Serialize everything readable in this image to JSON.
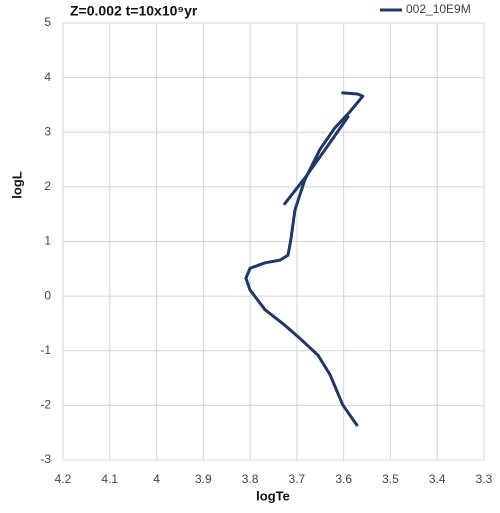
{
  "chart_data": {
    "type": "line",
    "title": "Z=0.002 t=10x10⁹yr",
    "x_label": "logTe",
    "y_label": "logL",
    "x": [
      3.572,
      3.602,
      3.629,
      3.655,
      3.694,
      3.726,
      3.768,
      3.8,
      3.809,
      3.8,
      3.768,
      3.736,
      3.719,
      3.713,
      3.704,
      3.683,
      3.651,
      3.619,
      3.587,
      3.559,
      3.57,
      3.602,
      null,
      3.726,
      3.683,
      3.64,
      3.591
    ],
    "series": [
      {
        "name": "002_10E9M",
        "color": "#1f3864",
        "values": [
          -2.36,
          -1.99,
          -1.44,
          -1.08,
          -0.77,
          -0.53,
          -0.25,
          0.11,
          0.33,
          0.51,
          0.61,
          0.66,
          0.75,
          1.03,
          1.58,
          2.13,
          2.68,
          3.08,
          3.37,
          3.66,
          3.7,
          3.72,
          null,
          1.69,
          2.16,
          2.68,
          3.28
        ]
      }
    ],
    "xlim": [
      4.2,
      3.3
    ],
    "xticks": [
      4.2,
      4.1,
      4,
      3.9,
      3.8,
      3.7,
      3.6,
      3.5,
      3.4,
      3.3
    ],
    "ylim": [
      -3,
      5
    ],
    "yticks": [
      -3,
      -2,
      -1,
      0,
      1,
      2,
      3,
      4,
      5
    ],
    "grid": true,
    "legend": "top-right"
  }
}
